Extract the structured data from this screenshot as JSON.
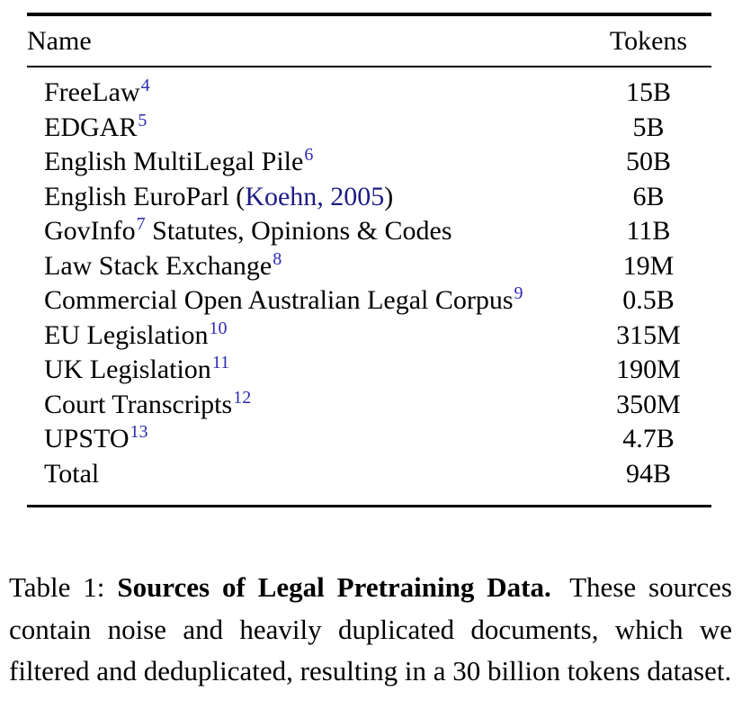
{
  "colors": {
    "footnote_link": "#2b2bb4",
    "citation_link": "#1c1c85",
    "text": "#000000",
    "rule": "#000000"
  },
  "table": {
    "header": {
      "name": "Name",
      "tokens": "Tokens"
    },
    "rows": [
      {
        "parts": [
          {
            "t": "FreeLaw"
          },
          {
            "t": "4",
            "type": "sup"
          }
        ],
        "tokens": "15B"
      },
      {
        "parts": [
          {
            "t": "EDGAR"
          },
          {
            "t": "5",
            "type": "sup"
          }
        ],
        "tokens": "5B"
      },
      {
        "parts": [
          {
            "t": "English MultiLegal Pile"
          },
          {
            "t": "6",
            "type": "sup"
          }
        ],
        "tokens": "50B"
      },
      {
        "parts": [
          {
            "t": "English EuroParl ("
          },
          {
            "t": "Koehn, 2005",
            "type": "cite"
          },
          {
            "t": ")"
          }
        ],
        "tokens": "6B"
      },
      {
        "parts": [
          {
            "t": "GovInfo"
          },
          {
            "t": "7",
            "type": "sup"
          },
          {
            "t": " Statutes, Opinions & Codes"
          }
        ],
        "tokens": "11B"
      },
      {
        "parts": [
          {
            "t": "Law Stack Exchange"
          },
          {
            "t": "8",
            "type": "sup"
          }
        ],
        "tokens": "19M"
      },
      {
        "parts": [
          {
            "t": "Commercial Open Australian Legal Corpus"
          },
          {
            "t": "9",
            "type": "sup"
          }
        ],
        "tokens": "0.5B"
      },
      {
        "parts": [
          {
            "t": "EU Legislation"
          },
          {
            "t": "10",
            "type": "sup"
          }
        ],
        "tokens": "315M"
      },
      {
        "parts": [
          {
            "t": "UK Legislation"
          },
          {
            "t": "11",
            "type": "sup"
          }
        ],
        "tokens": "190M"
      },
      {
        "parts": [
          {
            "t": "Court Transcripts"
          },
          {
            "t": "12",
            "type": "sup"
          }
        ],
        "tokens": "350M"
      },
      {
        "parts": [
          {
            "t": "UPSTO"
          },
          {
            "t": "13",
            "type": "sup"
          }
        ],
        "tokens": "4.7B"
      },
      {
        "parts": [
          {
            "t": "Total"
          }
        ],
        "tokens": "94B"
      }
    ]
  },
  "caption": {
    "label": "Table 1:",
    "title_bold": "Sources of Legal Pretraining Data.",
    "body": "These sources contain noise and heavily duplicated documents, which we filtered and deduplicated, resulting in a 30 billion tokens dataset."
  }
}
